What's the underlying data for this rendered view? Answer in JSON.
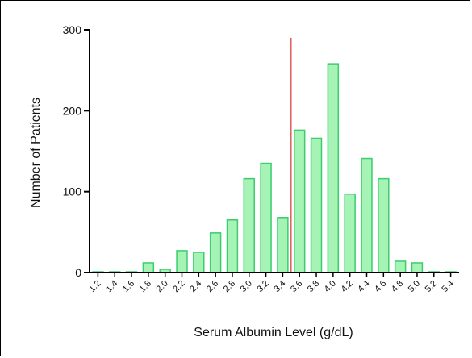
{
  "chart_data": {
    "type": "bar",
    "title": "",
    "xlabel": "Serum Albumin Level  (g/dL)",
    "ylabel": "Number of  Patients",
    "ylim": [
      0,
      300
    ],
    "yticks": [
      0,
      100,
      200,
      300
    ],
    "categories": [
      "1.2",
      "1.4",
      "1.6",
      "1.8",
      "2.0",
      "2.2",
      "2.4",
      "2.6",
      "2.8",
      "3.0",
      "3.2",
      "3.4",
      "3.6",
      "3.8",
      "4.0",
      "4.2",
      "4.4",
      "4.6",
      "4.8",
      "5.0",
      "5.2",
      "5.4"
    ],
    "values": [
      1,
      1,
      1,
      12,
      4,
      27,
      25,
      49,
      65,
      116,
      135,
      68,
      176,
      166,
      258,
      97,
      141,
      116,
      14,
      12,
      1,
      1
    ],
    "reference_line": {
      "x": 3.5
    },
    "grid": false,
    "legend": "none",
    "colors": {
      "bar_fill": "#a6f3b6",
      "bar_stroke": "#3dcc6e",
      "reference_line": "#d8453f",
      "axis": "#000000"
    }
  }
}
